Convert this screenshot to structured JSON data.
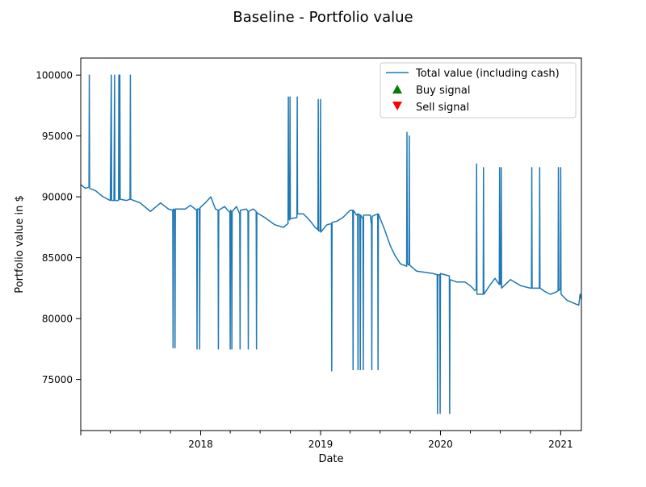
{
  "chart_data": {
    "type": "line",
    "title": "Baseline - Portfolio value",
    "xlabel": "Date",
    "ylabel": "Portfolio value in $",
    "xlim": [
      "2017-01-01",
      "2021-03-05"
    ],
    "ylim": [
      70800,
      101400
    ],
    "x_ticks": [
      "2018",
      "2019",
      "2020",
      "2021"
    ],
    "y_ticks": [
      "75000",
      "80000",
      "85000",
      "90000",
      "95000",
      "100000"
    ],
    "legend": {
      "placement": "top-right",
      "entries": [
        {
          "label": "Total value (including cash)",
          "marker": "line",
          "color": "#1f77b4"
        },
        {
          "label": "Buy signal",
          "marker": "triangle-up",
          "color": "#008000"
        },
        {
          "label": "Sell signal",
          "marker": "triangle-down",
          "color": "#ff0000"
        }
      ]
    },
    "grid": false,
    "series": [
      {
        "name": "Total value (including cash)",
        "color": "#1f77b4",
        "points": [
          [
            "2017-01-01",
            91000
          ],
          [
            "2017-01-15",
            90700
          ],
          [
            "2017-01-26",
            90800
          ],
          [
            "2017-01-27",
            100000
          ],
          [
            "2017-01-28",
            90700
          ],
          [
            "2017-02-15",
            90500
          ],
          [
            "2017-03-10",
            90000
          ],
          [
            "2017-04-01",
            89700
          ],
          [
            "2017-04-04",
            100000
          ],
          [
            "2017-04-05",
            89700
          ],
          [
            "2017-04-12",
            89700
          ],
          [
            "2017-04-14",
            100000
          ],
          [
            "2017-04-15",
            89700
          ],
          [
            "2017-04-26",
            89700
          ],
          [
            "2017-04-27",
            100000
          ],
          [
            "2017-04-28",
            89800
          ],
          [
            "2017-04-30",
            100000
          ],
          [
            "2017-05-01",
            89800
          ],
          [
            "2017-05-20",
            89700
          ],
          [
            "2017-05-31",
            89800
          ],
          [
            "2017-06-01",
            100000
          ],
          [
            "2017-06-02",
            89800
          ],
          [
            "2017-07-01",
            89500
          ],
          [
            "2017-08-01",
            88800
          ],
          [
            "2017-09-01",
            89500
          ],
          [
            "2017-09-25",
            89000
          ],
          [
            "2017-10-08",
            88900
          ],
          [
            "2017-10-09",
            77600
          ],
          [
            "2017-10-10",
            89000
          ],
          [
            "2017-10-14",
            88900
          ],
          [
            "2017-10-15",
            77600
          ],
          [
            "2017-10-16",
            89000
          ],
          [
            "2017-11-15",
            89000
          ],
          [
            "2017-12-01",
            89300
          ],
          [
            "2017-12-20",
            88900
          ],
          [
            "2017-12-21",
            77500
          ],
          [
            "2017-12-22",
            89000
          ],
          [
            "2017-12-28",
            89000
          ],
          [
            "2017-12-29",
            77500
          ],
          [
            "2017-12-30",
            89100
          ],
          [
            "2018-01-15",
            89500
          ],
          [
            "2018-02-01",
            90000
          ],
          [
            "2018-02-15",
            89000
          ],
          [
            "2018-02-23",
            88900
          ],
          [
            "2018-02-24",
            77500
          ],
          [
            "2018-02-25",
            88900
          ],
          [
            "2018-03-15",
            89200
          ],
          [
            "2018-03-31",
            88700
          ],
          [
            "2018-04-01",
            77500
          ],
          [
            "2018-04-02",
            88900
          ],
          [
            "2018-04-05",
            88800
          ],
          [
            "2018-04-06",
            77500
          ],
          [
            "2018-04-07",
            88800
          ],
          [
            "2018-04-20",
            89200
          ],
          [
            "2018-04-30",
            88600
          ],
          [
            "2018-05-01",
            77500
          ],
          [
            "2018-05-02",
            88900
          ],
          [
            "2018-05-20",
            89000
          ],
          [
            "2018-05-25",
            88800
          ],
          [
            "2018-05-26",
            77500
          ],
          [
            "2018-05-27",
            88800
          ],
          [
            "2018-06-10",
            89000
          ],
          [
            "2018-06-19",
            88800
          ],
          [
            "2018-06-20",
            77500
          ],
          [
            "2018-06-21",
            88700
          ],
          [
            "2018-07-15",
            88300
          ],
          [
            "2018-08-15",
            87700
          ],
          [
            "2018-09-10",
            87500
          ],
          [
            "2018-09-24",
            87800
          ],
          [
            "2018-09-25",
            98200
          ],
          [
            "2018-09-26",
            88200
          ],
          [
            "2018-09-29",
            88100
          ],
          [
            "2018-09-30",
            98200
          ],
          [
            "2018-10-01",
            88200
          ],
          [
            "2018-10-21",
            88300
          ],
          [
            "2018-10-22",
            98200
          ],
          [
            "2018-10-23",
            88600
          ],
          [
            "2018-11-10",
            88600
          ],
          [
            "2018-12-01",
            88000
          ],
          [
            "2018-12-15",
            87500
          ],
          [
            "2018-12-24",
            87300
          ],
          [
            "2018-12-25",
            98000
          ],
          [
            "2018-12-26",
            87200
          ],
          [
            "2018-12-31",
            87200
          ],
          [
            "2019-01-01",
            98000
          ],
          [
            "2019-01-02",
            87100
          ],
          [
            "2019-01-20",
            87700
          ],
          [
            "2019-02-03",
            87800
          ],
          [
            "2019-02-04",
            75700
          ],
          [
            "2019-02-05",
            87900
          ],
          [
            "2019-02-20",
            88000
          ],
          [
            "2019-03-10",
            88300
          ],
          [
            "2019-04-01",
            88900
          ],
          [
            "2019-04-09",
            88900
          ],
          [
            "2019-04-10",
            75800
          ],
          [
            "2019-04-11",
            88900
          ],
          [
            "2019-04-20",
            88500
          ],
          [
            "2019-04-24",
            88600
          ],
          [
            "2019-04-25",
            75800
          ],
          [
            "2019-04-26",
            88600
          ],
          [
            "2019-05-01",
            88500
          ],
          [
            "2019-05-02",
            75800
          ],
          [
            "2019-05-03",
            88500
          ],
          [
            "2019-05-10",
            88200
          ],
          [
            "2019-05-11",
            75800
          ],
          [
            "2019-05-12",
            88500
          ],
          [
            "2019-06-01",
            88500
          ],
          [
            "2019-06-05",
            87700
          ],
          [
            "2019-06-06",
            75800
          ],
          [
            "2019-06-07",
            88400
          ],
          [
            "2019-06-24",
            88600
          ],
          [
            "2019-06-25",
            75800
          ],
          [
            "2019-06-26",
            88600
          ],
          [
            "2019-07-15",
            87300
          ],
          [
            "2019-08-01",
            86000
          ],
          [
            "2019-08-15",
            85200
          ],
          [
            "2019-09-01",
            84500
          ],
          [
            "2019-09-20",
            84300
          ],
          [
            "2019-09-21",
            95300
          ],
          [
            "2019-09-22",
            84500
          ],
          [
            "2019-09-27",
            84400
          ],
          [
            "2019-09-28",
            95000
          ],
          [
            "2019-09-29",
            84400
          ],
          [
            "2019-10-20",
            83900
          ],
          [
            "2019-11-15",
            83800
          ],
          [
            "2019-12-10",
            83700
          ],
          [
            "2019-12-22",
            83600
          ],
          [
            "2019-12-23",
            72200
          ],
          [
            "2019-12-24",
            83600
          ],
          [
            "2019-12-30",
            83600
          ],
          [
            "2019-12-31",
            72200
          ],
          [
            "2020-01-01",
            83700
          ],
          [
            "2020-01-28",
            83500
          ],
          [
            "2020-01-29",
            72200
          ],
          [
            "2020-01-30",
            83200
          ],
          [
            "2020-02-20",
            83000
          ],
          [
            "2020-03-15",
            83000
          ],
          [
            "2020-04-01",
            82700
          ],
          [
            "2020-04-15",
            82300
          ],
          [
            "2020-04-19",
            82400
          ],
          [
            "2020-04-20",
            92700
          ],
          [
            "2020-04-21",
            82000
          ],
          [
            "2020-05-10",
            82000
          ],
          [
            "2020-05-11",
            92400
          ],
          [
            "2020-05-12",
            82000
          ],
          [
            "2020-06-01",
            82800
          ],
          [
            "2020-06-15",
            83300
          ],
          [
            "2020-06-28",
            82800
          ],
          [
            "2020-06-29",
            92400
          ],
          [
            "2020-06-30",
            82800
          ],
          [
            "2020-07-03",
            82800
          ],
          [
            "2020-07-04",
            92400
          ],
          [
            "2020-07-05",
            82500
          ],
          [
            "2020-08-01",
            83200
          ],
          [
            "2020-09-01",
            82700
          ],
          [
            "2020-10-01",
            82500
          ],
          [
            "2020-10-04",
            82500
          ],
          [
            "2020-10-05",
            92400
          ],
          [
            "2020-10-06",
            82500
          ],
          [
            "2020-10-28",
            82500
          ],
          [
            "2020-10-29",
            92400
          ],
          [
            "2020-10-30",
            82500
          ],
          [
            "2020-11-15",
            82200
          ],
          [
            "2020-12-01",
            82000
          ],
          [
            "2020-12-20",
            82200
          ],
          [
            "2020-12-24",
            82300
          ],
          [
            "2020-12-25",
            92400
          ],
          [
            "2020-12-26",
            82300
          ],
          [
            "2020-12-31",
            82400
          ],
          [
            "2021-01-01",
            92400
          ],
          [
            "2021-01-02",
            82000
          ],
          [
            "2021-01-20",
            81500
          ],
          [
            "2021-02-15",
            81200
          ],
          [
            "2021-02-25",
            81100
          ],
          [
            "2021-03-01",
            82000
          ],
          [
            "2021-03-05",
            81600
          ]
        ]
      }
    ]
  }
}
